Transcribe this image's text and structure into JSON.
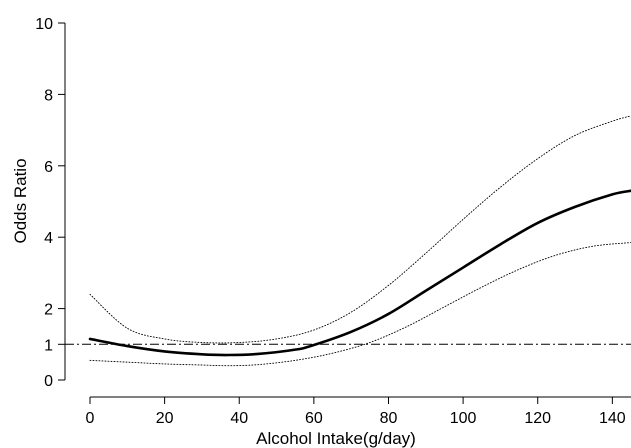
{
  "chart_data": {
    "type": "line",
    "xlabel": "Alcohol Intake(g/day)",
    "ylabel": "Odds Ratio",
    "xlim": [
      0,
      145
    ],
    "ylim": [
      0,
      10
    ],
    "x_ticks": [
      0,
      20,
      40,
      60,
      80,
      100,
      120,
      140
    ],
    "y_ticks": [
      0,
      1,
      2,
      4,
      6,
      8,
      10
    ],
    "reference_line": {
      "y": 1,
      "style": "dash-dot"
    },
    "grid": false,
    "series": [
      {
        "style": "solid-thick",
        "x": [
          0,
          10,
          20,
          30,
          37,
          45,
          55,
          60,
          70,
          80,
          90,
          100,
          110,
          120,
          130,
          140,
          145
        ],
        "y": [
          1.15,
          0.95,
          0.8,
          0.72,
          0.7,
          0.73,
          0.85,
          0.98,
          1.35,
          1.85,
          2.5,
          3.15,
          3.8,
          4.4,
          4.85,
          5.2,
          5.3
        ]
      },
      {
        "style": "dotted-upper",
        "x": [
          0,
          10,
          20,
          30,
          40,
          50,
          60,
          70,
          80,
          90,
          100,
          110,
          120,
          130,
          140,
          145
        ],
        "y": [
          2.4,
          1.45,
          1.15,
          1.05,
          1.05,
          1.15,
          1.4,
          1.9,
          2.65,
          3.55,
          4.5,
          5.4,
          6.2,
          6.85,
          7.25,
          7.4
        ]
      },
      {
        "style": "dotted-lower",
        "x": [
          0,
          10,
          20,
          30,
          37,
          45,
          55,
          65,
          75,
          85,
          95,
          105,
          115,
          125,
          135,
          145
        ],
        "y": [
          0.55,
          0.5,
          0.45,
          0.42,
          0.4,
          0.43,
          0.55,
          0.75,
          1.05,
          1.5,
          2.05,
          2.6,
          3.1,
          3.5,
          3.75,
          3.85
        ]
      }
    ]
  }
}
